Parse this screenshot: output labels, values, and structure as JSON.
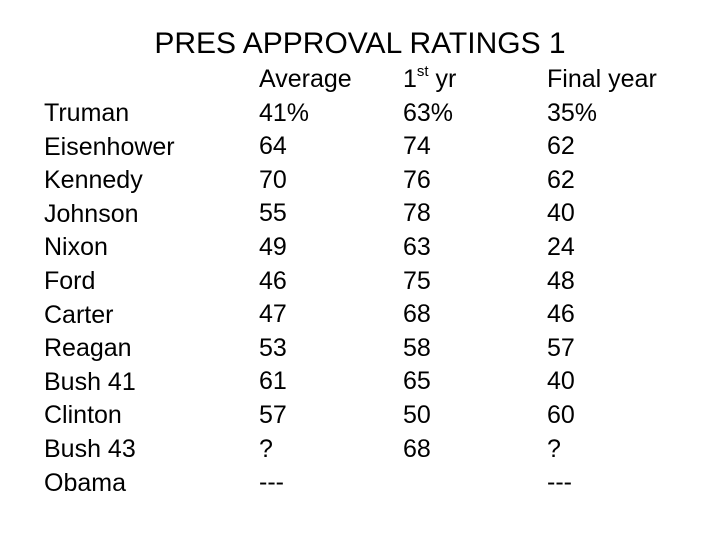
{
  "title": "PRES APPROVAL RATINGS 1",
  "headers": {
    "average": "Average",
    "first_year_num": "1",
    "first_year_sup": "st",
    "first_year_rest": " yr",
    "final_year": "Final year"
  },
  "rows": [
    {
      "name": "Truman",
      "average": "41%",
      "first_year": "63%",
      "final_year": "35%"
    },
    {
      "name": "Eisenhower",
      "average": "64",
      "first_year": "74",
      "final_year": "62"
    },
    {
      "name": "Kennedy",
      "average": "70",
      "first_year": "76",
      "final_year": "62"
    },
    {
      "name": "Johnson",
      "average": "55",
      "first_year": "78",
      "final_year": "40"
    },
    {
      "name": "Nixon",
      "average": "49",
      "first_year": "63",
      "final_year": "24"
    },
    {
      "name": "Ford",
      "average": "46",
      "first_year": "75",
      "final_year": "48"
    },
    {
      "name": "Carter",
      "average": "47",
      "first_year": "68",
      "final_year": "46"
    },
    {
      "name": "Reagan",
      "average": "53",
      "first_year": "58",
      "final_year": "57"
    },
    {
      "name": "Bush 41",
      "average": "61",
      "first_year": "65",
      "final_year": "40"
    },
    {
      "name": "Clinton",
      "average": "57",
      "first_year": "50",
      "final_year": "60"
    },
    {
      "name": "Bush 43",
      "average": "?",
      "first_year": "68",
      "final_year": "?"
    },
    {
      "name": "Obama",
      "average": "---",
      "first_year": "",
      "final_year": "---"
    }
  ]
}
